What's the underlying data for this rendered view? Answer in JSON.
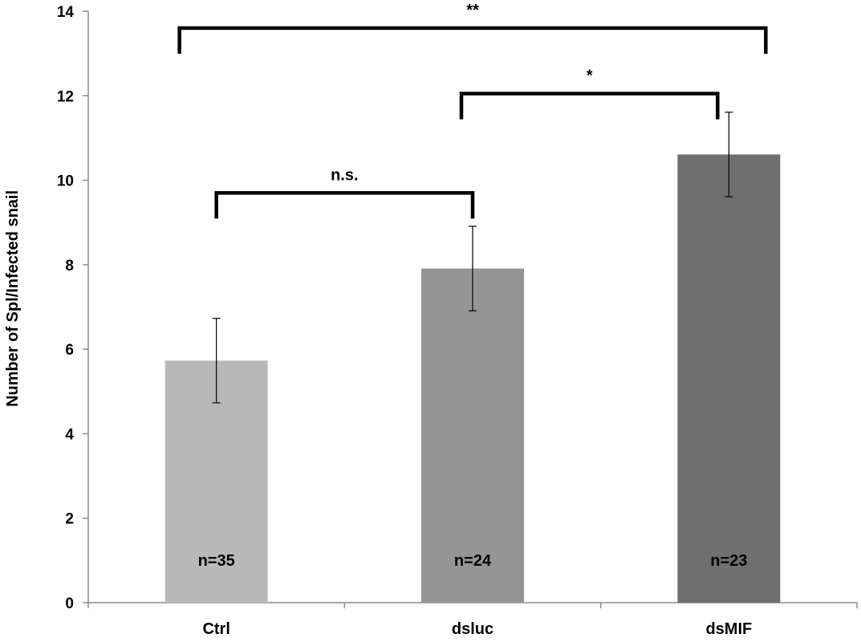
{
  "chart_data": {
    "type": "bar",
    "categories": [
      "Ctrl",
      "dsluc",
      "dsMIF"
    ],
    "values": [
      5.73,
      7.91,
      10.61
    ],
    "errors": [
      1.0,
      1.0,
      1.0
    ],
    "n_labels": [
      "n=35",
      "n=24",
      "n=23"
    ],
    "bar_colors": [
      "#b8b8b8",
      "#959595",
      "#6f6f6f"
    ],
    "ylabel": "Number of Spl/Infected snail",
    "ylim": [
      0,
      14
    ],
    "yticks": [
      "0",
      "2",
      "4",
      "6",
      "8",
      "10",
      "12",
      "14"
    ],
    "grid": false,
    "significance": [
      {
        "from": 0,
        "to": 1,
        "label": "n.s.",
        "bracket_y": 9.7
      },
      {
        "from": 1,
        "to": 2,
        "label": "*",
        "bracket_y": 12.05
      },
      {
        "from": 0,
        "to": 2,
        "label": "**",
        "bracket_y": 13.6
      }
    ]
  }
}
